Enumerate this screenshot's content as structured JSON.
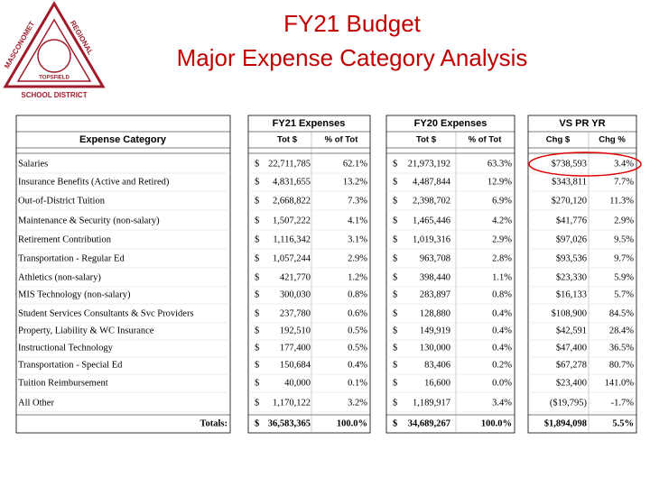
{
  "header": {
    "title_lines": [
      "FY21 Budget",
      "Major Expense Category Analysis"
    ]
  },
  "logo": {
    "texts": [
      "MASCONOMET",
      "REGIONAL",
      "SCHOOL DISTRICT",
      "TOPSFIELD"
    ]
  },
  "table": {
    "groups": [
      "FY21 Expenses",
      "FY20 Expenses",
      "VS PR YR"
    ],
    "category_header": "Expense Category",
    "subheaders": [
      "Tot $",
      "% of Tot",
      "Tot $",
      "% of Tot",
      "Chg $",
      "Chg %"
    ],
    "rows": [
      [
        "Salaries",
        "$",
        "22,711,785",
        "62.1%",
        "$",
        "21,973,192",
        "63.3%",
        "$738,593",
        "3.4%"
      ],
      [
        "Insurance Benefits (Active and Retired)",
        "$",
        "4,831,655",
        "13.2%",
        "$",
        "4,487,844",
        "12.9%",
        "$343,811",
        "7.7%"
      ],
      [
        "Out-of-District Tuition",
        "$",
        "2,668,822",
        "7.3%",
        "$",
        "2,398,702",
        "6.9%",
        "$270,120",
        "11.3%"
      ],
      [
        "Maintenance & Security (non-salary)",
        "$",
        "1,507,222",
        "4.1%",
        "$",
        "1,465,446",
        "4.2%",
        "$41,776",
        "2.9%"
      ],
      [
        "Retirement Contribution",
        "$",
        "1,116,342",
        "3.1%",
        "$",
        "1,019,316",
        "2.9%",
        "$97,026",
        "9.5%"
      ],
      [
        "Transportation -  Regular Ed",
        "$",
        "1,057,244",
        "2.9%",
        "$",
        "963,708",
        "2.8%",
        "$93,536",
        "9.7%"
      ],
      [
        "Athletics (non-salary)",
        "$",
        "421,770",
        "1.2%",
        "$",
        "398,440",
        "1.1%",
        "$23,330",
        "5.9%"
      ],
      [
        "MIS Technology (non-salary)",
        "$",
        "300,030",
        "0.8%",
        "$",
        "283,897",
        "0.8%",
        "$16,133",
        "5.7%"
      ],
      [
        "Student Services Consultants & Svc Providers",
        "$",
        "237,780",
        "0.6%",
        "$",
        "128,880",
        "0.4%",
        "$108,900",
        "84.5%"
      ],
      [
        "Property, Liability & WC Insurance",
        "$",
        "192,510",
        "0.5%",
        "$",
        "149,919",
        "0.4%",
        "$42,591",
        "28.4%"
      ],
      [
        "Instructional Technology",
        "$",
        "177,400",
        "0.5%",
        "$",
        "130,000",
        "0.4%",
        "$47,400",
        "36.5%"
      ],
      [
        "Transportation - Special Ed",
        "$",
        "150,684",
        "0.4%",
        "$",
        "83,406",
        "0.2%",
        "$67,278",
        "80.7%"
      ],
      [
        "Tuition Reimbursement",
        "$",
        "40,000",
        "0.1%",
        "$",
        "16,600",
        "0.0%",
        "$23,400",
        "141.0%"
      ],
      [
        "All Other",
        "$",
        "1,170,122",
        "3.2%",
        "$",
        "1,189,917",
        "3.4%",
        "($19,795)",
        "-1.7%"
      ]
    ],
    "totals": [
      "Totals:",
      "$",
      "36,583,365",
      "100.0%",
      "$",
      "34,689,267",
      "100.0%",
      "$1,894,098",
      "5.5%"
    ]
  }
}
